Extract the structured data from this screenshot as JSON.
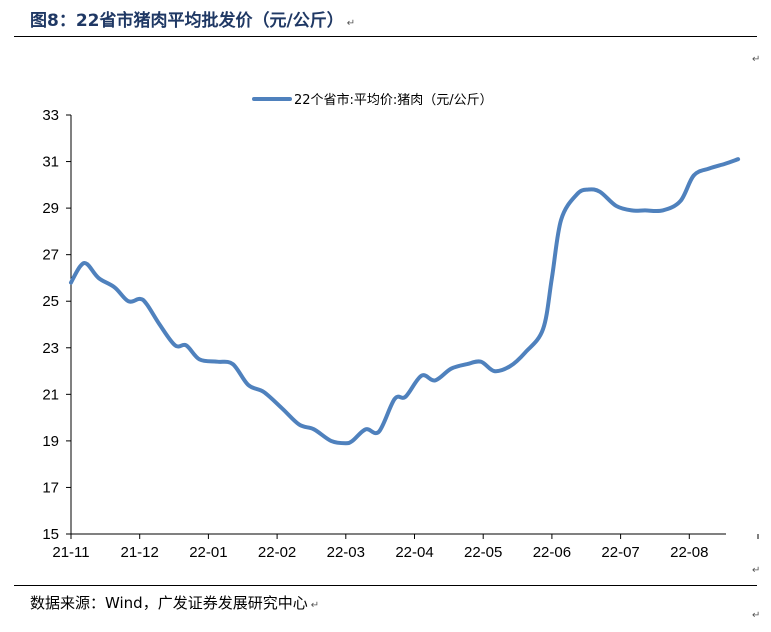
{
  "header": {
    "title": "图8：22省市猪肉平均批发价（元/公斤）",
    "return_mark": "↵"
  },
  "footer": {
    "source": "数据来源：Wind，广发证券发展研究中心"
  },
  "chart_data": {
    "type": "line",
    "title": "",
    "xlabel": "",
    "ylabel": "",
    "ylim": [
      15,
      33
    ],
    "yticks": [
      15,
      17,
      19,
      21,
      23,
      25,
      27,
      29,
      31,
      33
    ],
    "xticks": [
      "21-11",
      "21-12",
      "22-01",
      "22-02",
      "22-03",
      "22-04",
      "22-05",
      "22-06",
      "22-07",
      "22-08"
    ],
    "grid": false,
    "legend_position": "top-center",
    "series": [
      {
        "name": "22个省市:平均价:猪肉（元/公斤）",
        "color": "#4f81bd",
        "points": [
          [
            "21-11-01",
            25.8
          ],
          [
            "21-11-05",
            26.5
          ],
          [
            "21-11-08",
            26.6
          ],
          [
            "21-11-13",
            26.0
          ],
          [
            "21-11-20",
            25.6
          ],
          [
            "21-11-26",
            25.0
          ],
          [
            "21-12-01",
            25.1
          ],
          [
            "21-12-04",
            24.9
          ],
          [
            "21-12-10",
            24.0
          ],
          [
            "21-12-17",
            23.1
          ],
          [
            "21-12-22",
            23.1
          ],
          [
            "21-12-28",
            22.5
          ],
          [
            "22-01-05",
            22.4
          ],
          [
            "22-01-12",
            22.3
          ],
          [
            "22-01-19",
            21.4
          ],
          [
            "22-01-26",
            21.1
          ],
          [
            "22-02-03",
            20.4
          ],
          [
            "22-02-10",
            19.7
          ],
          [
            "22-02-16",
            19.5
          ],
          [
            "22-02-23",
            19.0
          ],
          [
            "22-03-01",
            18.9
          ],
          [
            "22-03-04",
            19.0
          ],
          [
            "22-03-10",
            19.5
          ],
          [
            "22-03-16",
            19.4
          ],
          [
            "22-03-23",
            20.8
          ],
          [
            "22-03-28",
            20.9
          ],
          [
            "22-04-04",
            21.8
          ],
          [
            "22-04-10",
            21.6
          ],
          [
            "22-04-17",
            22.1
          ],
          [
            "22-04-24",
            22.3
          ],
          [
            "22-04-30",
            22.4
          ],
          [
            "22-05-06",
            22.0
          ],
          [
            "22-05-13",
            22.2
          ],
          [
            "22-05-20",
            22.8
          ],
          [
            "22-05-28",
            23.8
          ],
          [
            "22-06-01",
            26.0
          ],
          [
            "22-06-05",
            28.5
          ],
          [
            "22-06-12",
            29.6
          ],
          [
            "22-06-17",
            29.8
          ],
          [
            "22-06-22",
            29.7
          ],
          [
            "22-06-29",
            29.1
          ],
          [
            "22-07-06",
            28.9
          ],
          [
            "22-07-12",
            28.9
          ],
          [
            "22-07-20",
            28.9
          ],
          [
            "22-07-28",
            29.3
          ],
          [
            "22-08-03",
            30.4
          ],
          [
            "22-08-10",
            30.7
          ],
          [
            "22-08-17",
            30.9
          ],
          [
            "22-08-23",
            31.1
          ]
        ]
      }
    ]
  }
}
